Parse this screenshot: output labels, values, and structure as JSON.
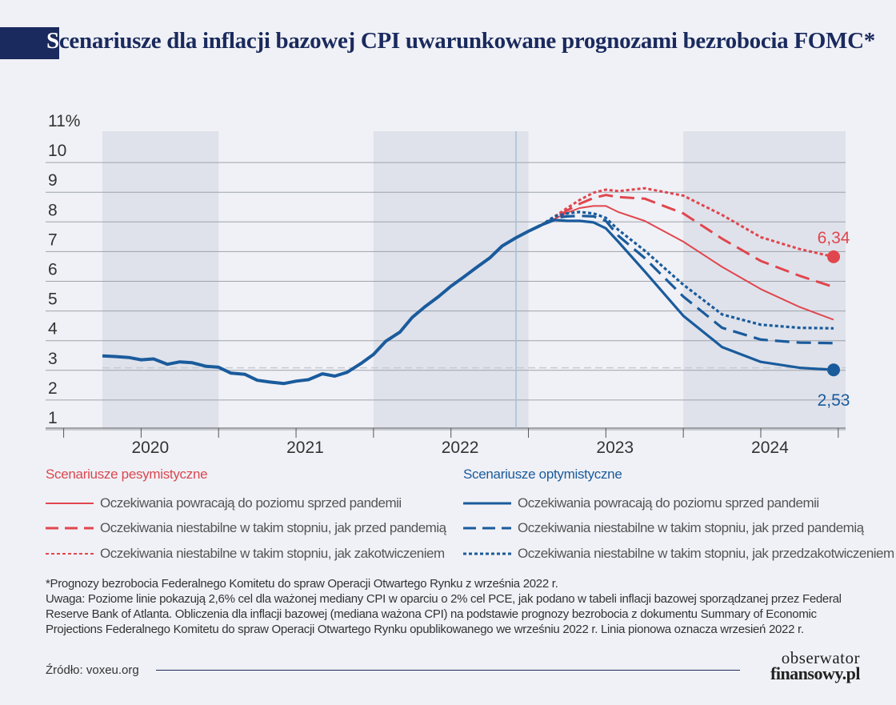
{
  "title": {
    "first_letter": "S",
    "rest": "cenariusze dla inflacji bazowej CPI uwarunkowane prognozami bezrobocia FOMC*"
  },
  "chart_data": {
    "type": "line",
    "ylim": [
      0.5,
      11
    ],
    "y_ticks": [
      "11%",
      "10",
      "9",
      "8",
      "7",
      "6",
      "5",
      "4",
      "3",
      "2",
      "1"
    ],
    "y_tick_values": [
      11,
      10,
      9,
      8,
      7,
      6,
      5,
      4,
      3,
      2,
      1
    ],
    "xlim": [
      2019.75,
      2024.8
    ],
    "year_labels": [
      "2020",
      "2021",
      "2022",
      "2023",
      "2024"
    ],
    "year_label_positions": [
      2020.5,
      2021.5,
      2022.5,
      2023.5,
      2024.5
    ],
    "shaded_periods": [
      [
        2019.75,
        2020.75
      ],
      [
        2021.75,
        2022.75
      ],
      [
        2023.75,
        2024.8
      ]
    ],
    "reference_line": {
      "value": 2.6,
      "color": "#c5cad3"
    },
    "vertical_line": {
      "x": 2022.67,
      "color": "#a9bfd2"
    },
    "historical": {
      "color": "#1a5b9c",
      "x": [
        2020.0,
        2020.08,
        2020.17,
        2020.25,
        2020.33,
        2020.42,
        2020.5,
        2020.58,
        2020.67,
        2020.75,
        2020.83,
        2020.92,
        2021.0,
        2021.08,
        2021.17,
        2021.25,
        2021.33,
        2021.42,
        2021.5,
        2021.58,
        2021.67,
        2021.75,
        2021.83,
        2021.92,
        2022.0,
        2022.08,
        2022.17,
        2022.25,
        2022.33,
        2022.42,
        2022.5,
        2022.58,
        2022.67,
        2022.75,
        2022.83
      ],
      "values": [
        3.0,
        2.98,
        2.95,
        2.87,
        2.9,
        2.72,
        2.8,
        2.77,
        2.65,
        2.62,
        2.42,
        2.38,
        2.18,
        2.12,
        2.07,
        2.15,
        2.2,
        2.4,
        2.32,
        2.45,
        2.75,
        3.05,
        3.5,
        3.8,
        4.3,
        4.65,
        5.0,
        5.35,
        5.65,
        6.0,
        6.3,
        6.7,
        6.98,
        7.2,
        7.4
      ]
    },
    "series": [
      {
        "name": "Oczekiwania powracają do poziomu sprzed pandemii",
        "group": "pessimistic",
        "style": "solid",
        "color": "#e0464d",
        "x": [
          2022.83,
          2022.92,
          2023.0,
          2023.08,
          2023.17,
          2023.25,
          2023.33,
          2023.5,
          2023.75,
          2024.0,
          2024.25,
          2024.5,
          2024.72
        ],
        "values": [
          7.4,
          7.62,
          7.82,
          7.98,
          8.05,
          8.05,
          7.85,
          7.55,
          6.85,
          6.0,
          5.25,
          4.65,
          4.22
        ]
      },
      {
        "name": "Oczekiwania niestabilne w takim stopniu, jak przed pandemią",
        "group": "pessimistic",
        "style": "dashed",
        "color": "#e0464d",
        "x": [
          2022.83,
          2022.92,
          2023.0,
          2023.08,
          2023.17,
          2023.25,
          2023.33,
          2023.5,
          2023.75,
          2024.0,
          2024.25,
          2024.5,
          2024.72
        ],
        "values": [
          7.4,
          7.65,
          7.9,
          8.12,
          8.32,
          8.42,
          8.35,
          8.3,
          7.8,
          6.95,
          6.2,
          5.7,
          5.32
        ]
      },
      {
        "name": "Oczekiwania niestabilne w takim stopniu, jak zakotwiczeniem",
        "group": "pessimistic",
        "style": "dotted",
        "color": "#e0464d",
        "x": [
          2022.83,
          2022.92,
          2023.0,
          2023.08,
          2023.17,
          2023.25,
          2023.33,
          2023.5,
          2023.75,
          2024.0,
          2024.25,
          2024.5,
          2024.72
        ],
        "values": [
          7.4,
          7.7,
          7.98,
          8.25,
          8.5,
          8.6,
          8.55,
          8.65,
          8.4,
          7.75,
          7.0,
          6.6,
          6.34
        ]
      },
      {
        "name": "Oczekiwania powracają do poziomu sprzed pandemii",
        "group": "optimistic",
        "style": "solid",
        "color": "#1a5b9c",
        "x": [
          2022.83,
          2022.92,
          2023.0,
          2023.08,
          2023.17,
          2023.25,
          2023.33,
          2023.5,
          2023.75,
          2024.0,
          2024.25,
          2024.5,
          2024.72
        ],
        "values": [
          7.4,
          7.58,
          7.55,
          7.55,
          7.5,
          7.3,
          6.85,
          5.85,
          4.35,
          3.3,
          2.8,
          2.6,
          2.53
        ]
      },
      {
        "name": "Oczekiwania niestabilne w takim stopniu, jak przed pandemią",
        "group": "optimistic",
        "style": "dashed",
        "color": "#1a5b9c",
        "x": [
          2022.83,
          2022.92,
          2023.0,
          2023.08,
          2023.17,
          2023.25,
          2023.33,
          2023.5,
          2023.75,
          2024.0,
          2024.25,
          2024.5,
          2024.72
        ],
        "values": [
          7.4,
          7.65,
          7.7,
          7.72,
          7.7,
          7.55,
          7.05,
          6.3,
          5.0,
          3.95,
          3.55,
          3.45,
          3.43
        ]
      },
      {
        "name": "Oczekiwania niestabilne w takim stopniu, jak przedzakotwiczeniem",
        "group": "optimistic",
        "style": "dotted",
        "color": "#1a5b9c",
        "x": [
          2022.83,
          2022.92,
          2023.0,
          2023.08,
          2023.17,
          2023.25,
          2023.33,
          2023.5,
          2023.75,
          2024.0,
          2024.25,
          2024.5,
          2024.72
        ],
        "values": [
          7.4,
          7.7,
          7.8,
          7.85,
          7.8,
          7.65,
          7.25,
          6.55,
          5.4,
          4.4,
          4.05,
          3.95,
          3.93
        ]
      }
    ],
    "end_labels": [
      {
        "text": "6,34",
        "x": 2024.72,
        "y": 6.34,
        "color": "#e0464d",
        "position": "above"
      },
      {
        "text": "2,53",
        "x": 2024.72,
        "y": 2.53,
        "color": "#1a5b9c",
        "position": "below"
      }
    ]
  },
  "legend": {
    "pessimistic": {
      "heading": "Scenariusze pesymistyczne",
      "color": "#e0464d",
      "items": [
        {
          "label": "Oczekiwania powracają do poziomu sprzed pandemii",
          "style": "solid"
        },
        {
          "label": "Oczekiwania niestabilne w takim stopniu, jak przed pandemią",
          "style": "dashed"
        },
        {
          "label": "Oczekiwania niestabilne w takim stopniu, jak zakotwiczeniem",
          "style": "dotted"
        }
      ]
    },
    "optimistic": {
      "heading": "Scenariusze optymistyczne",
      "color": "#1a5b9c",
      "items": [
        {
          "label": "Oczekiwania powracają do poziomu sprzed pandemii",
          "style": "solid"
        },
        {
          "label": "Oczekiwania niestabilne w takim stopniu, jak przed pandemią",
          "style": "dashed"
        },
        {
          "label": "Oczekiwania niestabilne w takim stopniu, jak przedzakotwiczeniem",
          "style": "dotted"
        }
      ]
    }
  },
  "notes": {
    "footnote": "*Prognozy bezrobocia Federalnego Komitetu do spraw Operacji Otwartego Rynku z września 2022 r.",
    "remark": "Uwaga: Poziome linie pokazują 2,6% cel dla ważonej mediany CPI w oparciu o 2% cel PCE, jak podano w tabeli inflacji bazowej sporządzanej przez Federal Reserve Bank of Atlanta. Obliczenia dla inflacji bazowej (mediana ważona CPI) na podstawie prognozy bezrobocia z dokumentu Summary of Economic Projections Federalnego Komitetu do spraw Operacji Otwartego Rynku opublikowanego we wrześniu 2022 r. Linia pionowa oznacza wrzesień 2022 r."
  },
  "source": "Źródło: voxeu.org",
  "logo": {
    "line1": "obserwator",
    "line2": "finansowy.pl"
  },
  "colors": {
    "navy": "#1a2a5e",
    "shade": "#dfe2eb",
    "background": "#f0f1f6",
    "grid": "#9ea2ab"
  }
}
